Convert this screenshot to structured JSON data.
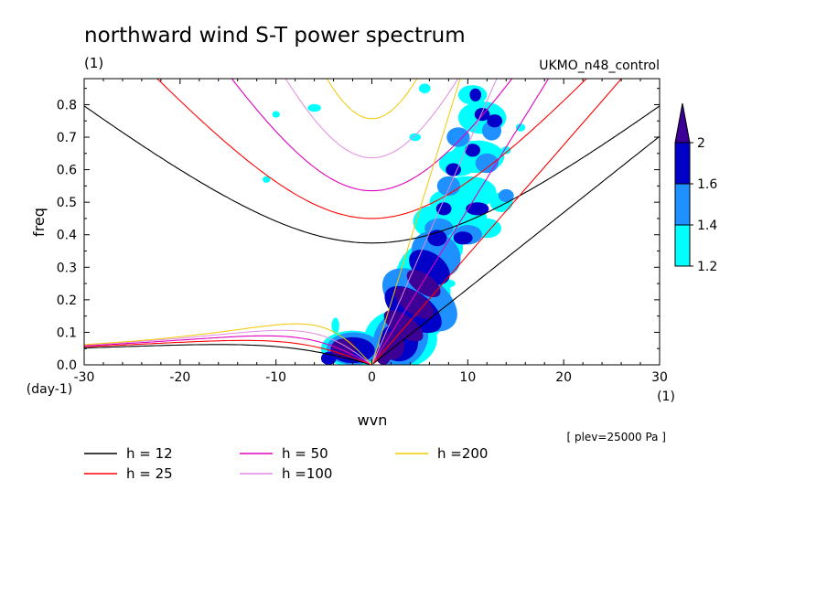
{
  "chart_data": {
    "type": "contour",
    "title": "northward wind S-T power spectrum",
    "units_label": "(1)",
    "run_label": "UKMO_n48_control",
    "xlabel": "wvn",
    "ylabel": "freq",
    "x_unit_label": "(1)",
    "y_unit_label": "(day-1)",
    "xlim": [
      -30,
      30
    ],
    "ylim": [
      0,
      0.88
    ],
    "x_ticks": [
      "-30",
      "-20",
      "-10",
      "0",
      "10",
      "20",
      "30"
    ],
    "x_tick_values": [
      -30,
      -20,
      -10,
      0,
      10,
      20,
      30
    ],
    "y_ticks": [
      "0.0",
      "0.1",
      "0.2",
      "0.3",
      "0.4",
      "0.5",
      "0.6",
      "0.7",
      "0.8"
    ],
    "y_tick_values": [
      0,
      0.1,
      0.2,
      0.3,
      0.4,
      0.5,
      0.6,
      0.7,
      0.8
    ],
    "level_note": "[ plev=25000 Pa ]",
    "colorbar": {
      "levels": [
        "1.2",
        "1.4",
        "1.6",
        "2"
      ],
      "colors": [
        "#00ffff",
        "#1e90ff",
        "#0000c8",
        "#3c0096"
      ]
    },
    "dispersion_curves": [
      {
        "name": "h = 12",
        "h": 12,
        "color": "#000000"
      },
      {
        "name": "h = 25",
        "h": 25,
        "color": "#ff0000"
      },
      {
        "name": "h = 50",
        "h": 50,
        "color": "#e000c0"
      },
      {
        "name": "h =100",
        "h": 100,
        "color": "#e08ae0"
      },
      {
        "name": "h =200",
        "h": 200,
        "color": "#f0c800"
      }
    ],
    "spectral_blobs": [
      {
        "x": 1.2,
        "y": 0.03,
        "rx": 0.8,
        "ry": 0.03,
        "level": 4
      },
      {
        "x": 2.2,
        "y": 0.06,
        "rx": 1.2,
        "ry": 0.045,
        "level": 4
      },
      {
        "x": 3.3,
        "y": 0.12,
        "rx": 1.1,
        "ry": 0.07,
        "level": 4
      },
      {
        "x": 4.4,
        "y": 0.19,
        "rx": 1.1,
        "ry": 0.07,
        "level": 4
      },
      {
        "x": 5.4,
        "y": 0.25,
        "rx": 1.0,
        "ry": 0.06,
        "level": 4
      },
      {
        "x": 2.8,
        "y": 0.07,
        "rx": 2.0,
        "ry": 0.06,
        "level": 3
      },
      {
        "x": 4.3,
        "y": 0.17,
        "rx": 1.8,
        "ry": 0.1,
        "level": 3
      },
      {
        "x": 6.0,
        "y": 0.3,
        "rx": 1.5,
        "ry": 0.07,
        "level": 3
      },
      {
        "x": 6.8,
        "y": 0.39,
        "rx": 1.0,
        "ry": 0.025,
        "level": 3
      },
      {
        "x": 9.5,
        "y": 0.39,
        "rx": 1.0,
        "ry": 0.02,
        "level": 3
      },
      {
        "x": 7.5,
        "y": 0.48,
        "rx": 0.8,
        "ry": 0.02,
        "level": 3
      },
      {
        "x": 11.0,
        "y": 0.48,
        "rx": 1.2,
        "ry": 0.02,
        "level": 3
      },
      {
        "x": 8.5,
        "y": 0.6,
        "rx": 0.8,
        "ry": 0.02,
        "level": 3
      },
      {
        "x": 10.5,
        "y": 0.66,
        "rx": 0.8,
        "ry": 0.02,
        "level": 3
      },
      {
        "x": 11.5,
        "y": 0.77,
        "rx": 0.8,
        "ry": 0.02,
        "level": 3
      },
      {
        "x": 12.8,
        "y": 0.75,
        "rx": 0.8,
        "ry": 0.02,
        "level": 3
      },
      {
        "x": 10.8,
        "y": 0.83,
        "rx": 0.6,
        "ry": 0.02,
        "level": 3
      },
      {
        "x": 3.0,
        "y": 0.08,
        "rx": 3.2,
        "ry": 0.08,
        "level": 2
      },
      {
        "x": 5.0,
        "y": 0.2,
        "rx": 2.6,
        "ry": 0.13,
        "level": 2
      },
      {
        "x": 6.7,
        "y": 0.34,
        "rx": 2.2,
        "ry": 0.08,
        "level": 2
      },
      {
        "x": 7.0,
        "y": 0.42,
        "rx": 1.5,
        "ry": 0.03,
        "level": 2
      },
      {
        "x": 10.0,
        "y": 0.4,
        "rx": 1.5,
        "ry": 0.03,
        "level": 2
      },
      {
        "x": 8.0,
        "y": 0.55,
        "rx": 1.2,
        "ry": 0.03,
        "level": 2
      },
      {
        "x": 12.0,
        "y": 0.62,
        "rx": 1.2,
        "ry": 0.03,
        "level": 2
      },
      {
        "x": 9.0,
        "y": 0.7,
        "rx": 1.2,
        "ry": 0.03,
        "level": 2
      },
      {
        "x": 12.5,
        "y": 0.72,
        "rx": 1.0,
        "ry": 0.03,
        "level": 2
      },
      {
        "x": 14.0,
        "y": 0.52,
        "rx": 0.8,
        "ry": 0.02,
        "level": 2
      },
      {
        "x": -3.0,
        "y": 0.05,
        "rx": 1.3,
        "ry": 0.03,
        "level": 4
      },
      {
        "x": -2.0,
        "y": 0.045,
        "rx": 2.3,
        "ry": 0.04,
        "level": 3
      },
      {
        "x": -1.9,
        "y": 0.05,
        "rx": 2.8,
        "ry": 0.05,
        "level": 2
      },
      {
        "x": -4.5,
        "y": 0.02,
        "rx": 0.8,
        "ry": 0.02,
        "level": 3
      },
      {
        "x": -3.8,
        "y": 0.12,
        "rx": 0.4,
        "ry": 0.025,
        "level": 1
      },
      {
        "x": -6.0,
        "y": 0.79,
        "rx": 0.7,
        "ry": 0.012,
        "level": 1
      },
      {
        "x": -10.0,
        "y": 0.77,
        "rx": 0.4,
        "ry": 0.01,
        "level": 1
      },
      {
        "x": -11.0,
        "y": 0.57,
        "rx": 0.4,
        "ry": 0.01,
        "level": 1
      },
      {
        "x": 5.5,
        "y": 0.85,
        "rx": 0.6,
        "ry": 0.015,
        "level": 1
      },
      {
        "x": 4.5,
        "y": 0.7,
        "rx": 0.6,
        "ry": 0.012,
        "level": 1
      },
      {
        "x": 8.0,
        "y": 0.25,
        "rx": 0.7,
        "ry": 0.012,
        "level": 1
      },
      {
        "x": 15.5,
        "y": 0.73,
        "rx": 0.5,
        "ry": 0.012,
        "level": 1
      },
      {
        "x": 14.0,
        "y": 0.66,
        "rx": 0.5,
        "ry": 0.012,
        "level": 1
      },
      {
        "x": 6.5,
        "y": 0.44,
        "rx": 2.2,
        "ry": 0.05,
        "level": 1
      },
      {
        "x": 9.0,
        "y": 0.45,
        "rx": 3.0,
        "ry": 0.05,
        "level": 1
      },
      {
        "x": 10.0,
        "y": 0.53,
        "rx": 3.0,
        "ry": 0.05,
        "level": 1
      },
      {
        "x": 11.0,
        "y": 0.64,
        "rx": 2.8,
        "ry": 0.05,
        "level": 1
      },
      {
        "x": 11.5,
        "y": 0.76,
        "rx": 2.5,
        "ry": 0.05,
        "level": 1
      },
      {
        "x": 9.0,
        "y": 0.62,
        "rx": 2.0,
        "ry": 0.04,
        "level": 1
      },
      {
        "x": 8.0,
        "y": 0.5,
        "rx": 2.0,
        "ry": 0.04,
        "level": 1
      },
      {
        "x": 7.0,
        "y": 0.36,
        "rx": 2.5,
        "ry": 0.06,
        "level": 1
      },
      {
        "x": 5.2,
        "y": 0.22,
        "rx": 3.0,
        "ry": 0.15,
        "level": 1
      },
      {
        "x": 3.0,
        "y": 0.08,
        "rx": 3.8,
        "ry": 0.09,
        "level": 1
      },
      {
        "x": 12.0,
        "y": 0.42,
        "rx": 1.5,
        "ry": 0.03,
        "level": 1
      },
      {
        "x": 13.5,
        "y": 0.5,
        "rx": 1.2,
        "ry": 0.03,
        "level": 1
      },
      {
        "x": 10.5,
        "y": 0.83,
        "rx": 1.5,
        "ry": 0.03,
        "level": 1
      },
      {
        "x": -2.0,
        "y": 0.05,
        "rx": 3.3,
        "ry": 0.055,
        "level": 1
      }
    ]
  }
}
